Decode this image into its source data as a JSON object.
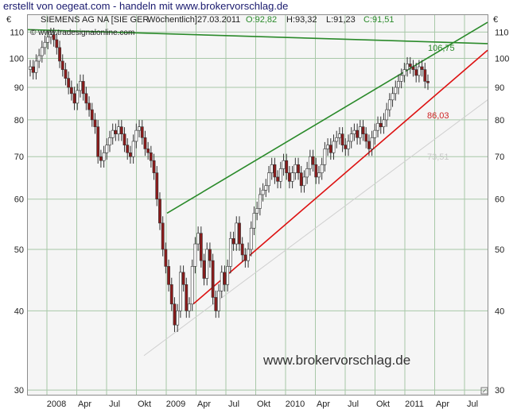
{
  "header": {
    "title": "erstellt von oegeat.com - handeln mit www.brokervorschlag.de"
  },
  "chart_data": {
    "type": "candlestick",
    "instrument_line": {
      "name": "SIEMENS AG NA [SIE GER",
      "interval": "Wöchentlich]",
      "date": "27.03.2011",
      "open": "O:92,82",
      "high": "H:93,32",
      "low": "L:91,23",
      "close": "C:91,51"
    },
    "copyright": "© www.tradesignalonline.com",
    "watermark": "www.brokervorschlag.de",
    "currency_left": "€",
    "currency_right": "€",
    "yscale": "log",
    "ylim": [
      29.5,
      117
    ],
    "y_ticks": [
      30,
      40,
      50,
      60,
      70,
      80,
      90,
      100,
      110
    ],
    "x_ticks": [
      "2008",
      "Apr",
      "Jul",
      "Okt",
      "2009",
      "Apr",
      "Jul",
      "Okt",
      "2010",
      "Apr",
      "Jul",
      "Okt",
      "2011",
      "Apr",
      "Jul"
    ],
    "annotations": [
      {
        "label": "106,75",
        "value": 106.75,
        "color": "#2a8a2a"
      },
      {
        "label": "86,03",
        "value": 86.03,
        "color": "#cc2222"
      },
      {
        "label": "73,51",
        "value": 73.51,
        "color": "#c8c8c8"
      }
    ],
    "colors": {
      "up": "#ffffff",
      "down": "#8b1a1a",
      "wick": "#333333",
      "upper_trend": "#2a8a2a",
      "lower_trend": "#dd1111",
      "faint_trend": "#cfcfcf",
      "grid": "#a8c8a8"
    },
    "weekly_closes": [
      97,
      95,
      99,
      101,
      104,
      106,
      108,
      109,
      107,
      104,
      99,
      96,
      93,
      90,
      88,
      85,
      89,
      92,
      88,
      85,
      83,
      80,
      78,
      70,
      69,
      71,
      73,
      75,
      77,
      76,
      78,
      76,
      73,
      71,
      70,
      74,
      77,
      78,
      75,
      72,
      71,
      69,
      66,
      60,
      55,
      50,
      47,
      44,
      41,
      38,
      40,
      46,
      44,
      40,
      41,
      47,
      51,
      53,
      48,
      45,
      50,
      48,
      42,
      40,
      43,
      46,
      44,
      47,
      52,
      51,
      55,
      51,
      49,
      48,
      50,
      54,
      57,
      58,
      61,
      62,
      63,
      66,
      68,
      65,
      64,
      67,
      69,
      66,
      64,
      66,
      68,
      66,
      63,
      65,
      67,
      70,
      68,
      65,
      66,
      68,
      72,
      73,
      71,
      74,
      75,
      76,
      73,
      72,
      74,
      76,
      77,
      75,
      78,
      76,
      74,
      72,
      75,
      77,
      79,
      78,
      80,
      83,
      86,
      88,
      90,
      92,
      94,
      96,
      98,
      97,
      96,
      94,
      97,
      96,
      92,
      91.5
    ]
  }
}
